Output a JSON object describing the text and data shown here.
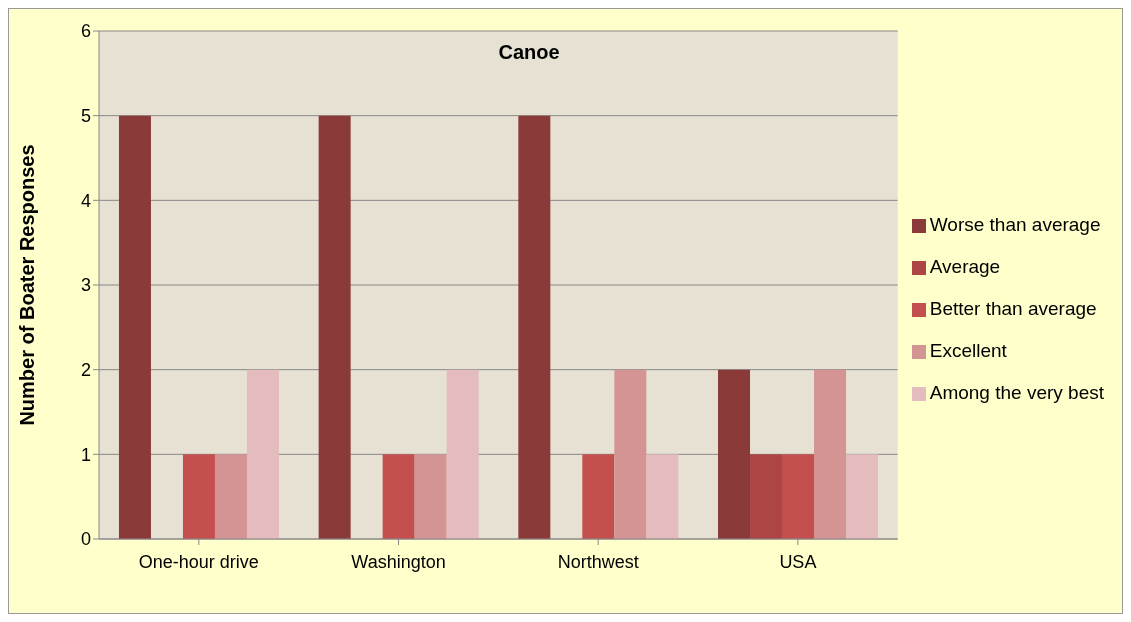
{
  "chart_data": {
    "type": "bar",
    "title": "Canoe",
    "ylabel": "Number of Boater Responses",
    "categories": [
      "One-hour drive",
      "Washington",
      "Northwest",
      "USA"
    ],
    "series": [
      {
        "name": "Worse than average",
        "color": "#8b3a3a",
        "values": [
          5,
          5,
          5,
          2
        ]
      },
      {
        "name": "Average",
        "color": "#ad4545",
        "values": [
          0,
          0,
          0,
          1
        ]
      },
      {
        "name": "Better than average",
        "color": "#c44f4f",
        "values": [
          1,
          1,
          1,
          1
        ]
      },
      {
        "name": "Excellent",
        "color": "#d49494",
        "values": [
          1,
          1,
          2,
          2
        ]
      },
      {
        "name": "Among the very best",
        "color": "#e4bcbe",
        "values": [
          2,
          2,
          1,
          1
        ]
      }
    ],
    "ylim": [
      0,
      6
    ],
    "yticks": [
      0,
      1,
      2,
      3,
      4,
      5,
      6
    ],
    "grid": "y",
    "legend": "right"
  }
}
